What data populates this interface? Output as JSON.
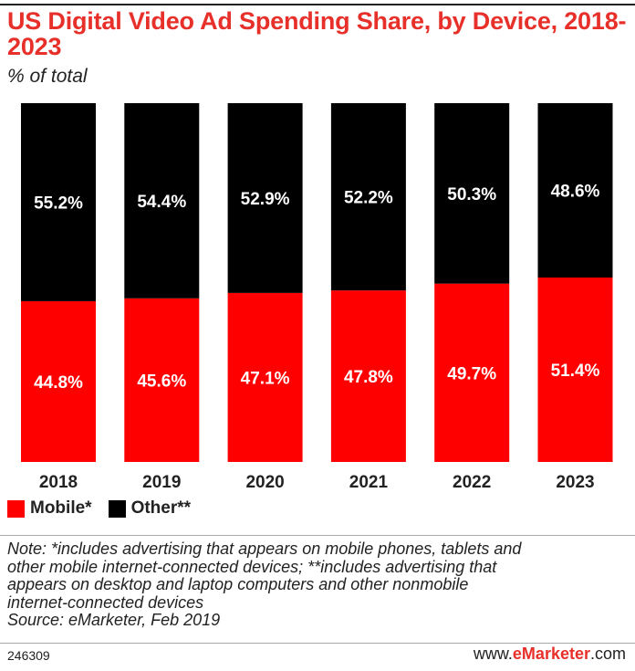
{
  "header": {
    "title": "US Digital Video Ad Spending Share, by Device, 2018-2023",
    "subtitle": "% of total"
  },
  "chart_data": {
    "type": "bar",
    "stacked": true,
    "categories": [
      "2018",
      "2019",
      "2020",
      "2021",
      "2022",
      "2023"
    ],
    "series": [
      {
        "name": "Mobile*",
        "color": "#ff0000",
        "values": [
          44.8,
          45.6,
          47.1,
          47.8,
          49.7,
          51.4
        ]
      },
      {
        "name": "Other**",
        "color": "#000000",
        "values": [
          55.2,
          54.4,
          52.9,
          52.2,
          50.3,
          48.6
        ]
      }
    ],
    "ylim": [
      0,
      100
    ],
    "value_suffix": "%",
    "grid": false,
    "legend_position": "bottom-left"
  },
  "legend": {
    "items": [
      {
        "label": "Mobile*",
        "color": "#ff0000"
      },
      {
        "label": "Other**",
        "color": "#000000"
      }
    ]
  },
  "footer": {
    "note_lines": [
      "Note: *includes advertising that appears on mobile phones, tablets and",
      "other mobile internet-connected devices; **includes advertising that",
      "appears on desktop and laptop computers and other nonmobile",
      "internet-connected devices"
    ],
    "source": "Source: eMarketer, Feb 2019",
    "chart_id": "246309",
    "brand_prefix": "www.",
    "brand_name": "eMarketer",
    "brand_suffix": ".com"
  }
}
